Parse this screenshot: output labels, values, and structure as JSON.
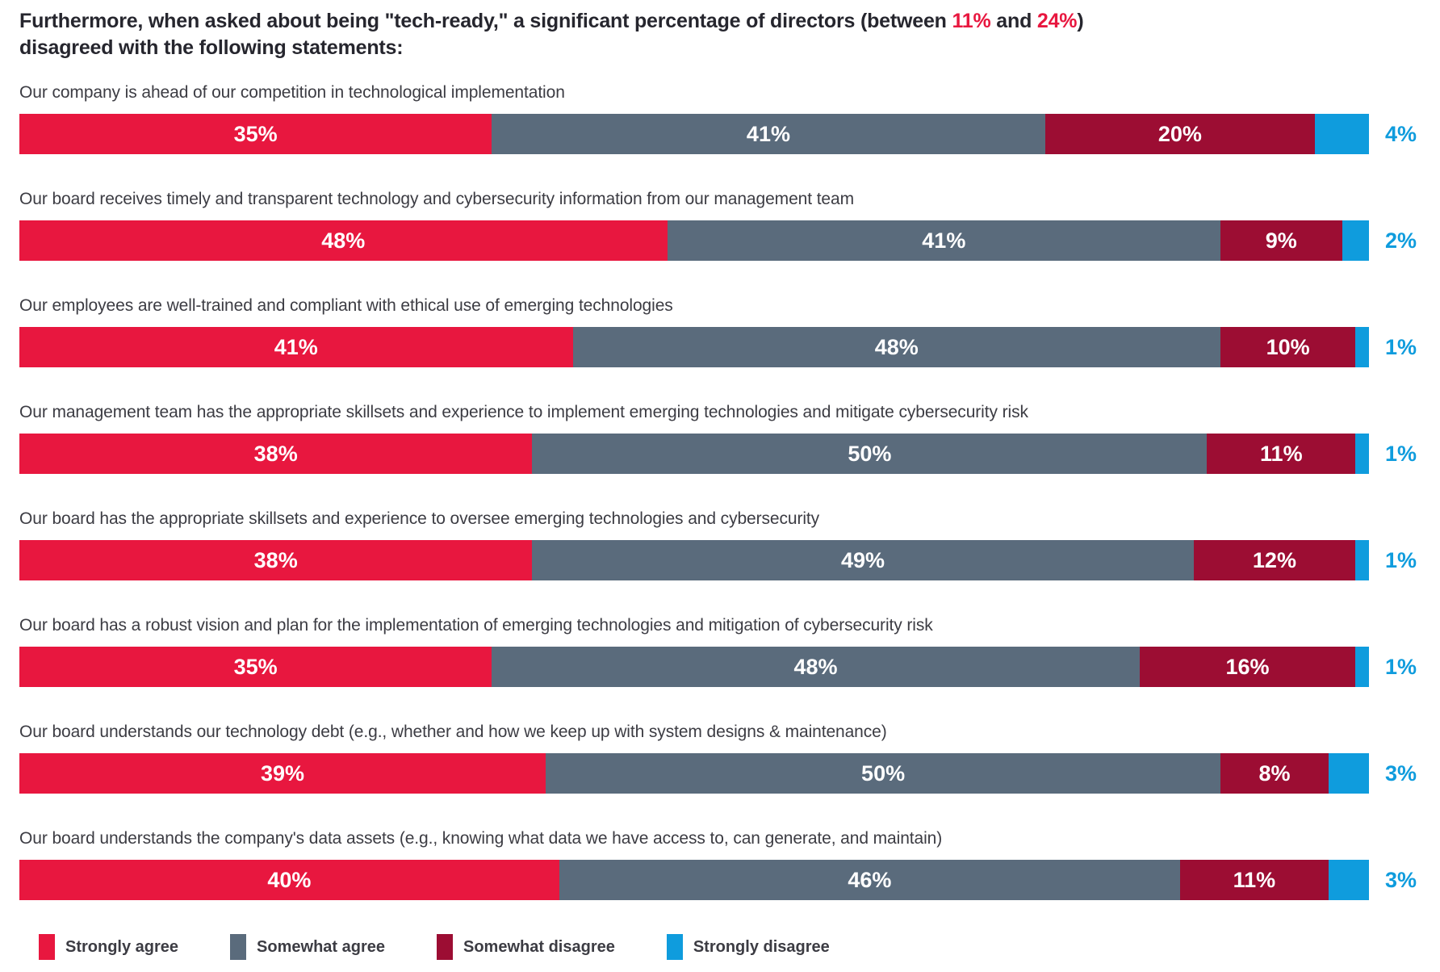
{
  "title": {
    "part1": "Furthermore, when asked about being \"tech-ready,\" a significant percentage of directors (between ",
    "highlight1": "11%",
    "part2": " and ",
    "highlight2": "24%",
    "part3": ") disagreed with the following statements:"
  },
  "colors": {
    "strongly_agree": "#e8173f",
    "somewhat_agree": "#5a6b7c",
    "somewhat_disagree": "#9c0d33",
    "strongly_disagree": "#0f9cdd",
    "title_text": "#26262e",
    "title_highlight": "#e8173f",
    "statement_text": "#3c3c43",
    "bar_value_text": "#ffffff"
  },
  "legend": [
    {
      "label": "Strongly agree",
      "color": "#e8173f"
    },
    {
      "label": "Somewhat agree",
      "color": "#5a6b7c"
    },
    {
      "label": "Somewhat disagree",
      "color": "#9c0d33"
    },
    {
      "label": "Strongly disagree",
      "color": "#0f9cdd"
    }
  ],
  "chart_data": {
    "type": "bar",
    "orientation": "horizontal_stacked",
    "unit": "percent",
    "xlim": [
      0,
      100
    ],
    "legend_position": "bottom",
    "value_label_format": "{value}%",
    "categories": [
      "Our company is ahead of our competition in technological implementation",
      "Our board receives timely and transparent technology and cybersecurity information from our management team",
      "Our employees are well-trained and compliant with ethical use of emerging technologies",
      "Our management team has the appropriate skillsets and experience to implement emerging technologies and mitigate cybersecurity risk",
      "Our board has the appropriate skillsets and experience to oversee emerging technologies and cybersecurity",
      "Our board has a robust vision and plan for the implementation of emerging technologies and mitigation of cybersecurity risk",
      "Our board understands our technology debt (e.g., whether and how we keep up with system designs & maintenance)",
      "Our board understands the company's data assets (e.g., knowing what data we have access to, can generate, and maintain)"
    ],
    "series": [
      {
        "name": "Strongly agree",
        "color": "#e8173f",
        "label_inside": true,
        "values": [
          35,
          48,
          41,
          38,
          38,
          35,
          39,
          40
        ]
      },
      {
        "name": "Somewhat agree",
        "color": "#5a6b7c",
        "label_inside": true,
        "values": [
          41,
          41,
          48,
          50,
          49,
          48,
          50,
          46
        ]
      },
      {
        "name": "Somewhat disagree",
        "color": "#9c0d33",
        "label_inside": true,
        "values": [
          20,
          9,
          10,
          11,
          12,
          16,
          8,
          11
        ]
      },
      {
        "name": "Strongly disagree",
        "color": "#0f9cdd",
        "label_inside": false,
        "values": [
          4,
          2,
          1,
          1,
          1,
          1,
          3,
          3
        ]
      }
    ]
  }
}
